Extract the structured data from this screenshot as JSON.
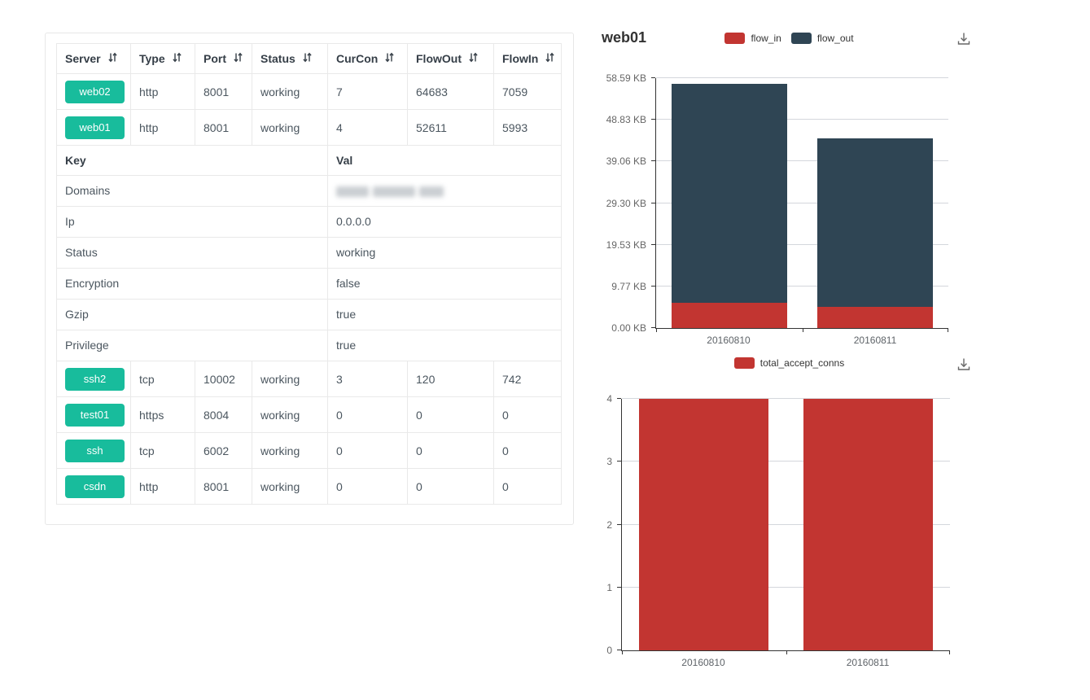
{
  "table_card": {
    "columns": [
      {
        "key": "server",
        "label": "Server",
        "sortable": true
      },
      {
        "key": "type",
        "label": "Type",
        "sortable": true
      },
      {
        "key": "port",
        "label": "Port",
        "sortable": true
      },
      {
        "key": "status",
        "label": "Status",
        "sortable": true
      },
      {
        "key": "curcon",
        "label": "CurCon",
        "sortable": true
      },
      {
        "key": "flowout",
        "label": "FlowOut",
        "sortable": true
      },
      {
        "key": "flowin",
        "label": "FlowIn",
        "sortable": true
      }
    ],
    "badge_color": "#18bc9c",
    "rows_top": [
      {
        "server": "web02",
        "type": "http",
        "port": "8001",
        "status": "working",
        "curcon": "7",
        "flowout": "64683",
        "flowin": "7059"
      },
      {
        "server": "web01",
        "type": "http",
        "port": "8001",
        "status": "working",
        "curcon": "4",
        "flowout": "52611",
        "flowin": "5993"
      }
    ],
    "detail": {
      "key_header": "Key",
      "val_header": "Val",
      "items": [
        {
          "key": "Domains",
          "val": "",
          "redacted": true
        },
        {
          "key": "Ip",
          "val": "0.0.0.0"
        },
        {
          "key": "Status",
          "val": "working"
        },
        {
          "key": "Encryption",
          "val": "false"
        },
        {
          "key": "Gzip",
          "val": "true"
        },
        {
          "key": "Privilege",
          "val": "true"
        }
      ]
    },
    "rows_bottom": [
      {
        "server": "ssh2",
        "type": "tcp",
        "port": "10002",
        "status": "working",
        "curcon": "3",
        "flowout": "120",
        "flowin": "742"
      },
      {
        "server": "test01",
        "type": "https",
        "port": "8004",
        "status": "working",
        "curcon": "0",
        "flowout": "0",
        "flowin": "0"
      },
      {
        "server": "ssh",
        "type": "tcp",
        "port": "6002",
        "status": "working",
        "curcon": "0",
        "flowout": "0",
        "flowin": "0"
      },
      {
        "server": "csdn",
        "type": "http",
        "port": "8001",
        "status": "working",
        "curcon": "0",
        "flowout": "0",
        "flowin": "0"
      }
    ]
  },
  "chart_data": [
    {
      "type": "bar",
      "stacked": true,
      "title": "web01",
      "categories": [
        "20160810",
        "20160811"
      ],
      "series": [
        {
          "name": "flow_in",
          "color": "#c23531",
          "values": [
            5993,
            5065
          ]
        },
        {
          "name": "flow_out",
          "color": "#2f4554",
          "values": [
            52611,
            40519
          ]
        }
      ],
      "value_unit": "bytes",
      "ylim": [
        0,
        60000
      ],
      "y_ticks": [
        "0.00 KB",
        "9.77 KB",
        "19.53 KB",
        "29.30 KB",
        "39.06 KB",
        "48.83 KB",
        "58.59 KB"
      ],
      "grid": true,
      "legend_position": "top",
      "has_download_icon": true
    },
    {
      "type": "bar",
      "stacked": false,
      "title": "",
      "categories": [
        "20160810",
        "20160811"
      ],
      "series": [
        {
          "name": "total_accept_conns",
          "color": "#c23531",
          "values": [
            4,
            4
          ]
        }
      ],
      "ylim": [
        0,
        4
      ],
      "y_ticks": [
        "0",
        "1",
        "2",
        "3",
        "4"
      ],
      "grid": true,
      "legend_position": "top",
      "has_download_icon": true
    }
  ]
}
